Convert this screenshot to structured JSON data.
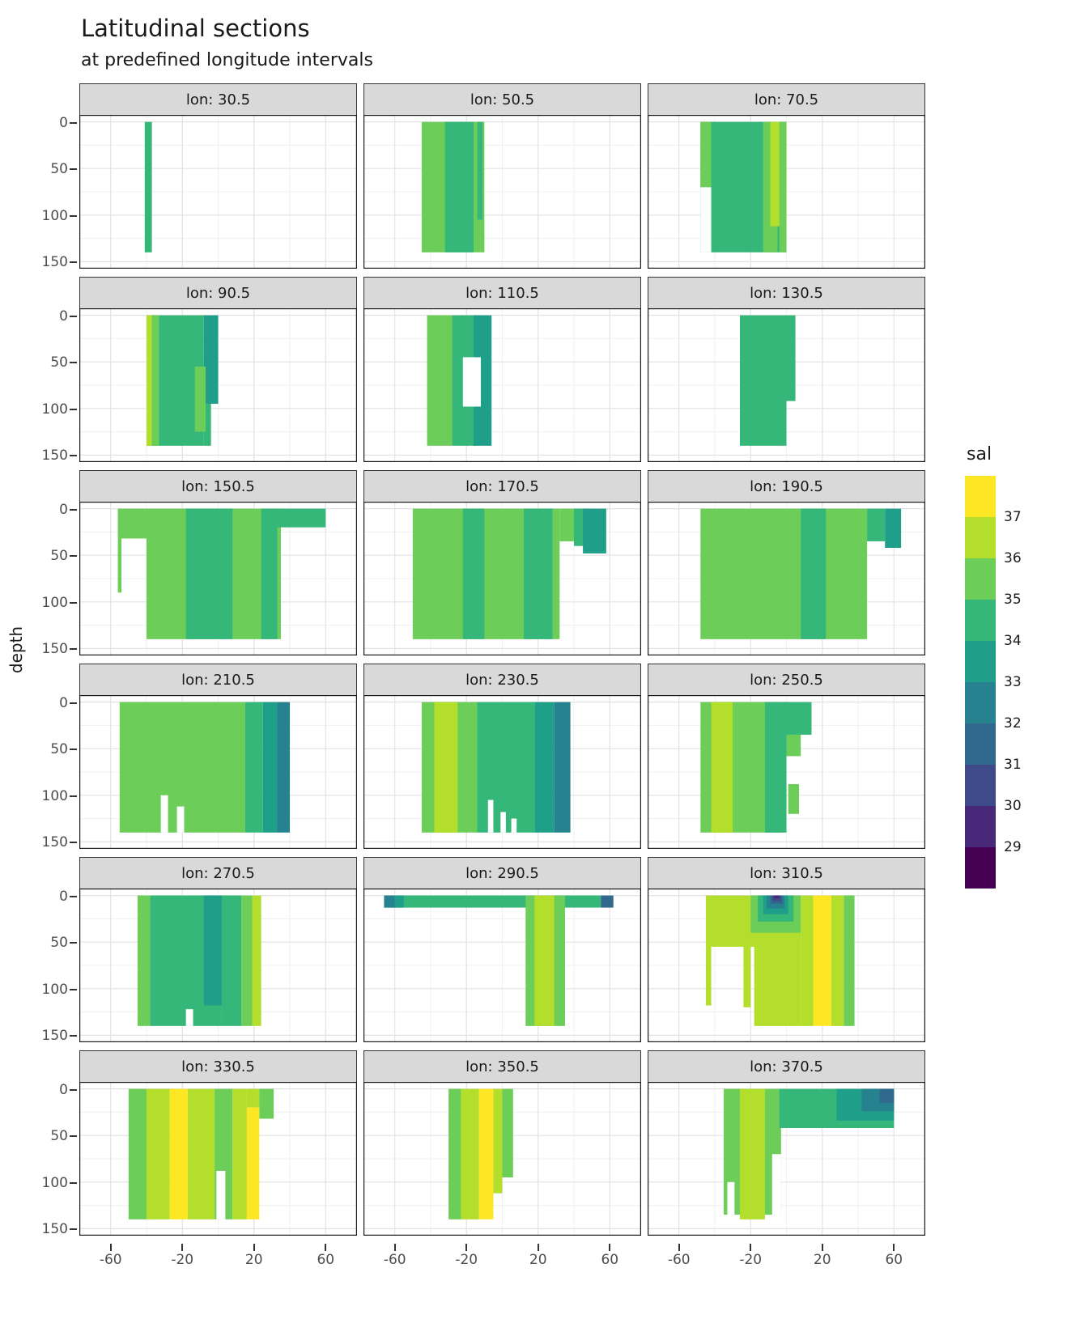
{
  "title": "Latitudinal sections",
  "subtitle": "at predefined longitude intervals",
  "y_axis_label": "depth",
  "legend": {
    "title": "sal",
    "labels": [
      37,
      36,
      35,
      34,
      33,
      32,
      31,
      30,
      29
    ],
    "block_order": [
      37,
      36,
      35,
      34,
      33,
      32,
      31,
      30,
      29,
      28
    ]
  },
  "colors": {
    "37": "#FDE725",
    "36": "#B4DE2C",
    "35": "#6DCD59",
    "34": "#35B779",
    "33": "#1F9E89",
    "32": "#26828E",
    "31": "#31688E",
    "30": "#3E4A89",
    "29": "#482878",
    "28": "#440154",
    "strip_bg": "#D9D9D9",
    "panel_border": "#1A1A1A",
    "grid_major": "#E2E2E2",
    "grid_minor": "#F0F0F0"
  },
  "chart_data": {
    "type": "heatmap",
    "subtype": "filled-contour latitudinal salinity sections, faceted by longitude",
    "x_variable": "latitude",
    "y_variable": "depth",
    "fill_variable": "sal",
    "x_ticks": [
      -60,
      -20,
      20,
      60
    ],
    "y_ticks": [
      0,
      50,
      100,
      150
    ],
    "x_minor_ticks": [
      -40,
      0,
      40
    ],
    "y_minor_ticks": [
      25,
      75,
      125
    ],
    "x_domain": [
      -77.5,
      77.5
    ],
    "y_domain": [
      -7.5,
      157.5
    ],
    "y_reversed": true,
    "grid": true,
    "ncol": 3,
    "band_format": "[lat_min, lat_max, depth_min, depth_max, sal_bin_lower (0 = no data / white)]",
    "facets": [
      {
        "label": "lon: 30.5",
        "lon": 30.5,
        "bands": [
          [
            -41,
            -37,
            0,
            140,
            34
          ]
        ]
      },
      {
        "label": "lon: 50.5",
        "lon": 50.5,
        "bands": [
          [
            -45,
            -10,
            0,
            140,
            35
          ],
          [
            -32,
            -16,
            0,
            140,
            34
          ],
          [
            -14,
            -11,
            0,
            105,
            34
          ]
        ]
      },
      {
        "label": "lon: 70.5",
        "lon": 70.5,
        "bands": [
          [
            -48,
            0,
            0,
            140,
            34
          ],
          [
            -48,
            -42,
            70,
            140,
            0
          ],
          [
            -48,
            -42,
            0,
            70,
            35
          ],
          [
            -13,
            -5,
            0,
            140,
            35
          ],
          [
            -9,
            -3,
            0,
            112,
            36
          ],
          [
            -4,
            0,
            0,
            140,
            35
          ]
        ]
      },
      {
        "label": "lon: 90.5",
        "lon": 90.5,
        "bands": [
          [
            -40,
            -8,
            0,
            140,
            34
          ],
          [
            -8,
            -4,
            95,
            140,
            34
          ],
          [
            -8,
            0,
            0,
            95,
            33
          ],
          [
            -40,
            -37,
            0,
            140,
            36
          ],
          [
            -37,
            -33,
            0,
            140,
            35
          ],
          [
            -13,
            -7,
            55,
            125,
            35
          ]
        ]
      },
      {
        "label": "lon: 110.5",
        "lon": 110.5,
        "bands": [
          [
            -42,
            -28,
            0,
            140,
            35
          ],
          [
            -28,
            -14,
            0,
            140,
            34
          ],
          [
            -16,
            -6,
            0,
            140,
            33
          ],
          [
            -22,
            -12,
            45,
            98,
            0
          ]
        ]
      },
      {
        "label": "lon: 130.5",
        "lon": 130.5,
        "bands": [
          [
            -26,
            0,
            0,
            140,
            34
          ],
          [
            0,
            5,
            0,
            92,
            34
          ]
        ]
      },
      {
        "label": "lon: 150.5",
        "lon": 150.5,
        "bands": [
          [
            -40,
            35,
            0,
            140,
            35
          ],
          [
            -55,
            -40,
            0,
            32,
            35
          ],
          [
            -56,
            -54,
            0,
            90,
            35
          ],
          [
            -18,
            8,
            0,
            140,
            34
          ],
          [
            24,
            33,
            0,
            140,
            34
          ],
          [
            33,
            60,
            0,
            20,
            34
          ]
        ]
      },
      {
        "label": "lon: 170.5",
        "lon": 170.5,
        "bands": [
          [
            -50,
            32,
            0,
            140,
            35
          ],
          [
            -22,
            -10,
            0,
            140,
            34
          ],
          [
            12,
            28,
            0,
            140,
            34
          ],
          [
            32,
            45,
            0,
            35,
            35
          ],
          [
            40,
            50,
            0,
            40,
            34
          ],
          [
            45,
            58,
            0,
            48,
            33
          ]
        ]
      },
      {
        "label": "lon: 190.5",
        "lon": 190.5,
        "bands": [
          [
            -48,
            45,
            0,
            140,
            35
          ],
          [
            8,
            22,
            0,
            140,
            34
          ],
          [
            45,
            55,
            0,
            35,
            34
          ],
          [
            55,
            64,
            0,
            42,
            33
          ]
        ]
      },
      {
        "label": "lon: 210.5",
        "lon": 210.5,
        "bands": [
          [
            -55,
            15,
            0,
            140,
            35
          ],
          [
            15,
            25,
            0,
            140,
            34
          ],
          [
            25,
            33,
            0,
            140,
            33
          ],
          [
            33,
            40,
            0,
            140,
            32
          ],
          [
            -32,
            -28,
            100,
            140,
            0
          ],
          [
            -23,
            -19,
            112,
            140,
            0
          ]
        ]
      },
      {
        "label": "lon: 230.5",
        "lon": 230.5,
        "bands": [
          [
            -45,
            -14,
            0,
            140,
            35
          ],
          [
            -38,
            -25,
            0,
            140,
            36
          ],
          [
            -14,
            18,
            0,
            140,
            34
          ],
          [
            18,
            29,
            0,
            140,
            33
          ],
          [
            29,
            38,
            0,
            140,
            32
          ],
          [
            -8,
            -5,
            105,
            140,
            0
          ],
          [
            -1,
            2,
            118,
            140,
            0
          ],
          [
            5,
            8,
            125,
            140,
            0
          ]
        ]
      },
      {
        "label": "lon: 250.5",
        "lon": 250.5,
        "bands": [
          [
            -48,
            -2,
            0,
            140,
            35
          ],
          [
            -42,
            -30,
            0,
            140,
            36
          ],
          [
            -12,
            0,
            0,
            140,
            34
          ],
          [
            -2,
            14,
            0,
            35,
            34
          ],
          [
            0,
            8,
            35,
            58,
            35
          ],
          [
            1,
            7,
            88,
            120,
            35
          ]
        ]
      },
      {
        "label": "lon: 270.5",
        "lon": 270.5,
        "bands": [
          [
            -45,
            -38,
            0,
            140,
            35
          ],
          [
            -38,
            2,
            0,
            140,
            34
          ],
          [
            -8,
            2,
            0,
            118,
            33
          ],
          [
            2,
            13,
            0,
            140,
            34
          ],
          [
            13,
            19,
            0,
            140,
            35
          ],
          [
            19,
            24,
            0,
            140,
            36
          ],
          [
            -18,
            -14,
            122,
            140,
            0
          ]
        ]
      },
      {
        "label": "lon: 290.5",
        "lon": 290.5,
        "bands": [
          [
            -66,
            55,
            0,
            13,
            34
          ],
          [
            -66,
            -60,
            0,
            13,
            32
          ],
          [
            -60,
            -55,
            0,
            13,
            33
          ],
          [
            55,
            62,
            0,
            13,
            31
          ],
          [
            13,
            35,
            0,
            140,
            35
          ],
          [
            18,
            29,
            0,
            140,
            36
          ]
        ]
      },
      {
        "label": "lon: 310.5",
        "lon": 310.5,
        "bands": [
          [
            -45,
            -10,
            0,
            55,
            36
          ],
          [
            -45,
            -42,
            55,
            118,
            36
          ],
          [
            -24,
            -20,
            55,
            120,
            36
          ],
          [
            -18,
            8,
            38,
            140,
            36
          ],
          [
            8,
            15,
            0,
            140,
            36
          ],
          [
            15,
            25,
            0,
            140,
            37
          ],
          [
            25,
            32,
            0,
            140,
            36
          ],
          [
            32,
            38,
            0,
            140,
            35
          ],
          [
            -20,
            8,
            0,
            40,
            35
          ],
          [
            -16,
            4,
            0,
            28,
            34
          ],
          [
            -13,
            1,
            0,
            20,
            33
          ],
          [
            -11,
            -1,
            0,
            14,
            32
          ],
          [
            -9,
            -2,
            0,
            9,
            31
          ],
          [
            -8,
            -3,
            0,
            6,
            30
          ],
          [
            -7,
            -4,
            0,
            3,
            29
          ]
        ]
      },
      {
        "label": "lon: 330.5",
        "lon": 330.5,
        "bands": [
          [
            -50,
            -40,
            0,
            140,
            35
          ],
          [
            -40,
            -27,
            0,
            140,
            36
          ],
          [
            -27,
            -17,
            0,
            140,
            37
          ],
          [
            -17,
            -2,
            0,
            140,
            36
          ],
          [
            -2,
            8,
            0,
            140,
            35
          ],
          [
            8,
            16,
            0,
            140,
            36
          ],
          [
            16,
            23,
            0,
            20,
            36
          ],
          [
            16,
            23,
            20,
            140,
            37
          ],
          [
            23,
            31,
            0,
            32,
            35
          ],
          [
            -1,
            4,
            88,
            140,
            0
          ]
        ]
      },
      {
        "label": "lon: 350.5",
        "lon": 350.5,
        "bands": [
          [
            -30,
            -23,
            0,
            140,
            35
          ],
          [
            -23,
            -13,
            0,
            140,
            36
          ],
          [
            -13,
            -5,
            0,
            140,
            37
          ],
          [
            -5,
            0,
            0,
            112,
            36
          ],
          [
            0,
            6,
            0,
            95,
            35
          ]
        ]
      },
      {
        "label": "lon: 370.5",
        "lon": 370.5,
        "bands": [
          [
            -35,
            -3,
            0,
            135,
            35
          ],
          [
            -26,
            -12,
            0,
            140,
            36
          ],
          [
            -33,
            -29,
            100,
            140,
            0
          ],
          [
            -8,
            -3,
            70,
            135,
            0
          ],
          [
            -4,
            60,
            0,
            42,
            34
          ],
          [
            28,
            60,
            0,
            34,
            33
          ],
          [
            42,
            60,
            0,
            24,
            32
          ],
          [
            52,
            60,
            0,
            15,
            31
          ]
        ]
      }
    ]
  }
}
